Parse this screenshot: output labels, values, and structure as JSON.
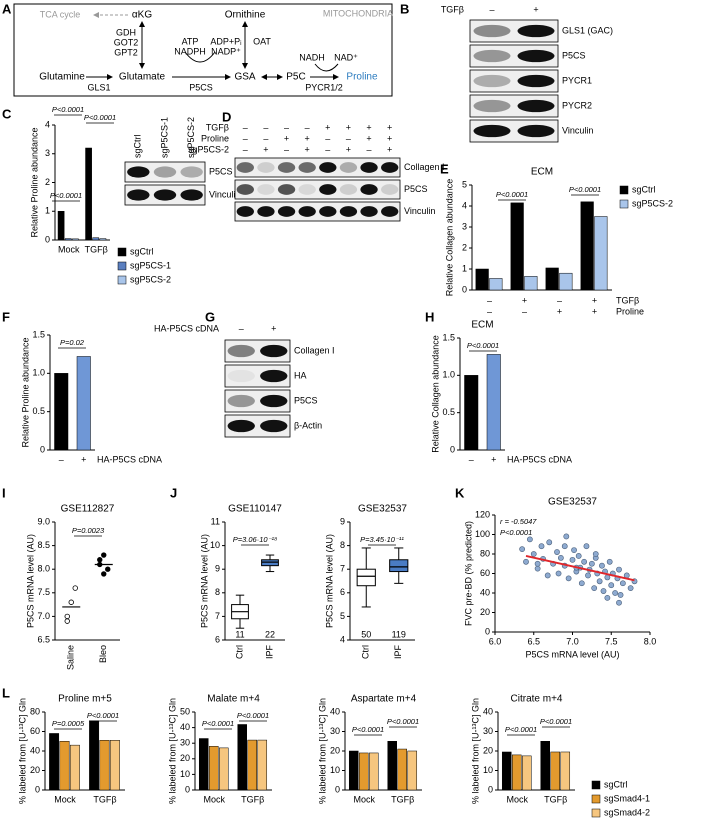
{
  "panel_letters": [
    "A",
    "B",
    "C",
    "D",
    "E",
    "F",
    "G",
    "H",
    "I",
    "J",
    "K",
    "L"
  ],
  "pathway": {
    "compartment": "MITOCHONDRIA",
    "nodes": [
      "TCA cycle",
      "αKG",
      "Ornithine",
      "Glutamine",
      "Glutamate",
      "GSA",
      "P5C",
      "Proline"
    ],
    "enzymes": [
      "GDH",
      "GOT2",
      "GPT2",
      "GLS1",
      "P5CS",
      "OAT",
      "PYCR1/2"
    ],
    "cofactors": [
      "ATP",
      "NADPH",
      "ADP+Pᵢ",
      "NADP⁺",
      "NADH",
      "NAD⁺"
    ]
  },
  "blots": [
    {
      "column_rows": [
        {
          "name": "TGFβ",
          "values": [
            "–",
            "+"
          ]
        }
      ],
      "bands": [
        "GLS1 (GAC)",
        "P5CS",
        "PYCR1",
        "PYCR2",
        "Vinculin"
      ]
    },
    {
      "column_labels": [
        "sgCtrl",
        "sgP5CS-1",
        "sgP5CS-2"
      ],
      "bands": [
        "P5CS",
        "Vinculin"
      ]
    },
    {
      "column_rows": [
        {
          "name": "TGFβ",
          "values": [
            "–",
            "–",
            "–",
            "–",
            "+",
            "+",
            "+",
            "+"
          ]
        },
        {
          "name": "Proline",
          "values": [
            "–",
            "–",
            "+",
            "+",
            "–",
            "–",
            "+",
            "+"
          ]
        },
        {
          "name": "sgP5CS-2",
          "values": [
            "–",
            "+",
            "–",
            "+",
            "–",
            "+",
            "–",
            "+"
          ]
        }
      ],
      "bands": [
        "Collagen I",
        "P5CS",
        "Vinculin"
      ]
    },
    {
      "column_rows": [
        {
          "name": "HA-P5CS cDNA",
          "values": [
            "–",
            "+"
          ]
        }
      ],
      "bands": [
        "Collagen I",
        "HA",
        "P5CS",
        "β-Actin"
      ]
    }
  ],
  "chart_data": [
    {
      "type": "bar",
      "ylabel": "Relative Proline abundance",
      "categories": [
        "Mock",
        "TGFβ"
      ],
      "series": [
        {
          "name": "sgCtrl",
          "color": "#000000",
          "values": [
            1.0,
            3.2
          ]
        },
        {
          "name": "sgP5CS-1",
          "color": "#5b7fbf",
          "values": [
            0.05,
            0.08
          ]
        },
        {
          "name": "sgP5CS-2",
          "color": "#a9c5ea",
          "values": [
            0.04,
            0.05
          ]
        }
      ],
      "ylim": [
        0,
        4
      ],
      "yticks": [
        0,
        1,
        2,
        3,
        4
      ],
      "annotations": [
        "P<0.0001",
        "P<0.0001",
        "P<0.0001"
      ]
    },
    {
      "type": "bar",
      "title": "ECM",
      "ylabel": "Relative Collagen abundance",
      "condition_rows": [
        {
          "name": "TGFβ",
          "values": [
            "–",
            "+",
            "–",
            "+"
          ]
        },
        {
          "name": "Proline",
          "values": [
            "–",
            "–",
            "+",
            "+"
          ]
        }
      ],
      "series": [
        {
          "name": "sgCtrl",
          "color": "#000000",
          "values": [
            1.0,
            4.15,
            1.05,
            4.2
          ]
        },
        {
          "name": "sgP5CS-2",
          "color": "#a9c5ea",
          "values": [
            0.55,
            0.65,
            0.8,
            3.5
          ]
        }
      ],
      "ylim": [
        0,
        5
      ],
      "yticks": [
        0,
        1,
        2,
        3,
        4,
        5
      ],
      "annotations": [
        "P<0.0001",
        "P<0.0001"
      ]
    },
    {
      "type": "bar",
      "ylabel": "Relative Proline abundance",
      "categories": [
        "–",
        "+"
      ],
      "xlabel": "HA-P5CS cDNA",
      "values": [
        1.0,
        1.22
      ],
      "colors": [
        "#000000",
        "#6f97d6"
      ],
      "ylim": [
        0,
        1.5
      ],
      "yticks": [
        0,
        0.5,
        {
          "value": 1,
          "label": "1.0"
        },
        1.5
      ],
      "annotations": [
        "P=0.02"
      ]
    },
    {
      "type": "bar",
      "title": "ECM",
      "ylabel": "Relative Collagen abundance",
      "categories": [
        "–",
        "+"
      ],
      "xlabel": "HA-P5CS cDNA",
      "values": [
        1.0,
        1.28
      ],
      "colors": [
        "#000000",
        "#6f97d6"
      ],
      "ylim": [
        0,
        1.5
      ],
      "yticks": [
        0,
        0.5,
        {
          "value": 1,
          "label": "1.0"
        },
        1.5
      ],
      "annotations": [
        "P<0.0001"
      ]
    },
    {
      "type": "dot",
      "title": "GSE112827",
      "ylabel": "P5CS mRNA level (AU)",
      "categories": [
        "Saline",
        "Bleo"
      ],
      "points": [
        [
          6.9,
          7.3,
          7.6,
          7.0
        ],
        [
          8.1,
          8.3,
          8.0,
          8.2,
          7.9
        ]
      ],
      "means": [
        7.2,
        8.1
      ],
      "ylim": [
        6.5,
        9
      ],
      "yticks": [
        6.5,
        {
          "value": 7,
          "label": "7.0"
        },
        7.5,
        {
          "value": 8,
          "label": "8.0"
        },
        8.5,
        {
          "value": 9,
          "label": "9.0"
        }
      ],
      "annotations": [
        "P=0.0023"
      ]
    },
    {
      "type": "box",
      "title": "GSE110147",
      "ylabel": "P5CS mRNA level (AU)",
      "categories": [
        "Ctrl",
        "IPF"
      ],
      "boxes": [
        {
          "whislo": 6.5,
          "q1": 6.9,
          "med": 7.2,
          "q3": 7.5,
          "whishi": 7.9
        },
        {
          "whislo": 8.9,
          "q1": 9.15,
          "med": 9.3,
          "q3": 9.4,
          "whishi": 9.6
        }
      ],
      "n": [
        11,
        22
      ],
      "colors": [
        "#ffffff",
        "#4a7cc4"
      ],
      "ylim": [
        6,
        11
      ],
      "yticks": [
        6,
        7,
        8,
        9,
        10,
        11
      ],
      "annotations": [
        "P=3.06·10⁻¹⁸"
      ]
    },
    {
      "type": "box",
      "title": "GSE32537",
      "ylabel": "P5CS mRNA level (AU)",
      "categories": [
        "Ctrl",
        "IPF"
      ],
      "boxes": [
        {
          "whislo": 5.4,
          "q1": 6.3,
          "med": 6.7,
          "q3": 7.0,
          "whishi": 7.9
        },
        {
          "whislo": 6.4,
          "q1": 6.9,
          "med": 7.1,
          "q3": 7.4,
          "whishi": 7.9
        }
      ],
      "n": [
        50,
        119
      ],
      "colors": [
        "#ffffff",
        "#4a7cc4"
      ],
      "ylim": [
        4,
        9
      ],
      "yticks": [
        4,
        5,
        6,
        7,
        8,
        9
      ],
      "annotations": [
        "P=3.45·10⁻¹¹"
      ]
    },
    {
      "type": "scatter",
      "title": "GSE32537",
      "xlabel": "P5CS mRNA level (AU)",
      "ylabel": "FVC pre-BD (% predicted)",
      "x": [
        6.35,
        6.4,
        6.45,
        6.5,
        6.55,
        6.6,
        6.62,
        6.68,
        6.7,
        6.75,
        6.8,
        6.82,
        6.85,
        6.9,
        6.92,
        6.95,
        7.0,
        7.02,
        7.05,
        7.08,
        7.1,
        7.12,
        7.15,
        7.18,
        7.2,
        7.22,
        7.25,
        7.28,
        7.3,
        7.32,
        7.35,
        7.38,
        7.4,
        7.42,
        7.45,
        7.48,
        7.5,
        7.52,
        7.55,
        7.58,
        7.6,
        7.62,
        7.65,
        7.7,
        7.75,
        7.8,
        6.55,
        6.9,
        7.05,
        7.3,
        7.45,
        7.6
      ],
      "y": [
        85,
        72,
        95,
        80,
        65,
        88,
        75,
        58,
        92,
        70,
        82,
        60,
        76,
        68,
        98,
        55,
        74,
        84,
        62,
        78,
        66,
        50,
        72,
        88,
        58,
        64,
        70,
        45,
        76,
        60,
        52,
        68,
        42,
        62,
        56,
        72,
        48,
        60,
        40,
        55,
        64,
        38,
        50,
        58,
        45,
        52,
        70,
        88,
        66,
        80,
        35,
        30
      ],
      "color": "#8eaad0",
      "fit": {
        "x": [
          6.4,
          7.8
        ],
        "y": [
          78,
          53
        ]
      },
      "fit_color": "#e0262b",
      "xlim": [
        6,
        8
      ],
      "xticks": [
        {
          "value": 6,
          "label": "6.0"
        },
        6.5,
        {
          "value": 7,
          "label": "7.0"
        },
        7.5,
        {
          "value": 8,
          "label": "8.0"
        }
      ],
      "ylim": [
        0,
        120
      ],
      "yticks": [
        0,
        20,
        40,
        60,
        80,
        100,
        120
      ],
      "annotations": [
        "r = -0.5047",
        "P<0.0001"
      ]
    },
    {
      "type": "bar",
      "title": "Proline m+5",
      "ylabel": "% labeled from [U-¹³C] Gln",
      "categories": [
        "Mock",
        "TGFβ"
      ],
      "series": [
        {
          "color": "#000000",
          "values": [
            58,
            71
          ]
        },
        {
          "color": "#e39a2e",
          "values": [
            50,
            51
          ]
        },
        {
          "color": "#f6c67f",
          "values": [
            46,
            51
          ]
        }
      ],
      "ylim": [
        0,
        80
      ],
      "yticks": [
        0,
        20,
        40,
        60,
        80
      ],
      "annotations": [
        "P=0.0005",
        "P<0.0001"
      ]
    },
    {
      "type": "bar",
      "title": "Malate m+4",
      "ylabel": "% labeled from [U-¹³C] Gln",
      "categories": [
        "Mock",
        "TGFβ"
      ],
      "series": [
        {
          "color": "#000000",
          "values": [
            33,
            42
          ]
        },
        {
          "color": "#e39a2e",
          "values": [
            28,
            32
          ]
        },
        {
          "color": "#f6c67f",
          "values": [
            27,
            32
          ]
        }
      ],
      "ylim": [
        0,
        50
      ],
      "yticks": [
        0,
        10,
        20,
        30,
        40,
        50
      ],
      "annotations": [
        "P<0.0001",
        "P<0.0001"
      ]
    },
    {
      "type": "bar",
      "title": "Aspartate m+4",
      "ylabel": "% labeled from [U-¹³C] Gln",
      "categories": [
        "Mock",
        "TGFβ"
      ],
      "series": [
        {
          "color": "#000000",
          "values": [
            20,
            25
          ]
        },
        {
          "color": "#e39a2e",
          "values": [
            19,
            21
          ]
        },
        {
          "color": "#f6c67f",
          "values": [
            19,
            20
          ]
        }
      ],
      "ylim": [
        0,
        40
      ],
      "yticks": [
        0,
        10,
        20,
        30,
        40
      ],
      "annotations": [
        "P<0.0001",
        "P<0.0001"
      ]
    },
    {
      "type": "bar",
      "title": "Citrate m+4",
      "ylabel": "% labeled from [U-¹³C] Gln",
      "categories": [
        "Mock",
        "TGFβ"
      ],
      "series": [
        {
          "name": "sgCtrl",
          "color": "#000000",
          "values": [
            19.5,
            25
          ]
        },
        {
          "name": "sgSmad4-1",
          "color": "#e39a2e",
          "values": [
            18,
            19.5
          ]
        },
        {
          "name": "sgSmad4-2",
          "color": "#f6c67f",
          "values": [
            17.5,
            19.5
          ]
        }
      ],
      "ylim": [
        0,
        40
      ],
      "yticks": [
        0,
        10,
        20,
        30,
        40
      ],
      "annotations": [
        "P<0.0001",
        "P<0.0001"
      ]
    }
  ]
}
